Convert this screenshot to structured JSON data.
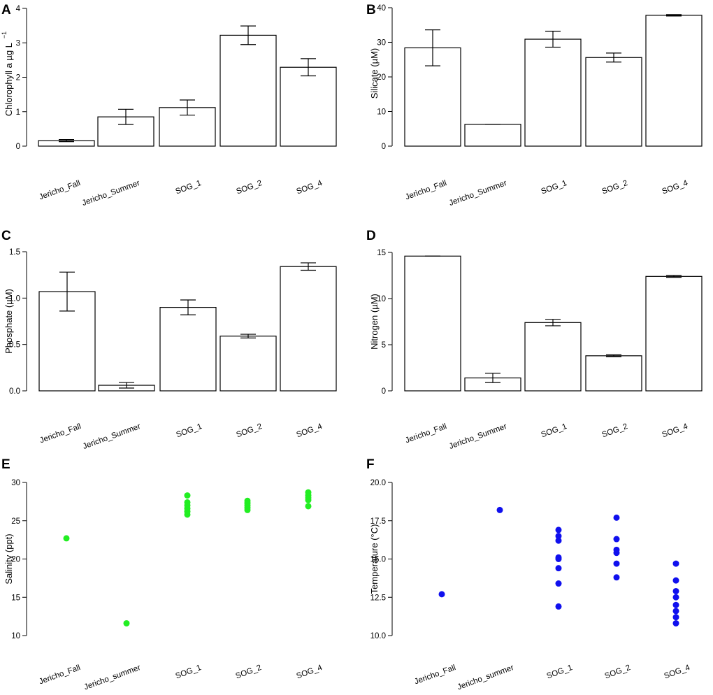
{
  "chart_data": [
    {
      "panel": "A",
      "type": "bar",
      "ylabel": "Chlorophyll a µg L",
      "ylabel_superscript": "−1",
      "categories": [
        "Jericho_Fall",
        "Jericho_Summer",
        "SOG_1",
        "SOG_2",
        "SOG_4"
      ],
      "values": [
        0.16,
        0.85,
        1.12,
        3.22,
        2.29
      ],
      "errors": [
        0.03,
        0.22,
        0.22,
        0.27,
        0.25
      ],
      "ylim": [
        0,
        4
      ],
      "yticks": [
        0,
        1,
        2,
        3,
        4
      ],
      "ytick_labels": [
        "0",
        "1",
        "2",
        "3",
        "4"
      ]
    },
    {
      "panel": "B",
      "type": "bar",
      "ylabel": "Silicate (µM)",
      "categories": [
        "Jericho_Fall",
        "Jericho_Summer",
        "SOG_1",
        "SOG_2",
        "SOG_4"
      ],
      "values": [
        28.4,
        6.3,
        30.9,
        25.6,
        37.8
      ],
      "errors": [
        5.2,
        0,
        2.3,
        1.3,
        0.2
      ],
      "ylim": [
        0,
        40
      ],
      "yticks": [
        0,
        10,
        20,
        30,
        40
      ],
      "ytick_labels": [
        "0",
        "10",
        "20",
        "30",
        "40"
      ]
    },
    {
      "panel": "C",
      "type": "bar",
      "ylabel": "Phosphate (µM)",
      "categories": [
        "Jericho_Fall",
        "Jericho_Summer",
        "SOG_1",
        "SOG_2",
        "SOG_4"
      ],
      "values": [
        1.07,
        0.06,
        0.9,
        0.59,
        1.34
      ],
      "errors": [
        0.21,
        0.03,
        0.08,
        0.02,
        0.04
      ],
      "ylim": [
        0,
        1.5
      ],
      "yticks": [
        0,
        0.5,
        1.0,
        1.5
      ],
      "ytick_labels": [
        "0.0",
        "0.5",
        "1.0",
        "1.5"
      ]
    },
    {
      "panel": "D",
      "type": "bar",
      "ylabel": "Nitrogen (µM)",
      "categories": [
        "Jericho_Fall",
        "Jericho_Summer",
        "SOG_1",
        "SOG_2",
        "SOG_4"
      ],
      "values": [
        14.6,
        1.4,
        7.4,
        3.8,
        12.4
      ],
      "errors": [
        0,
        0.5,
        0.35,
        0.1,
        0.1
      ],
      "ylim": [
        0,
        15
      ],
      "yticks": [
        0,
        5,
        10,
        15
      ],
      "ytick_labels": [
        "0",
        "5",
        "10",
        "15"
      ]
    },
    {
      "panel": "E",
      "type": "scatter",
      "color": "#22ee22",
      "ylabel": "Salinity (ppt)",
      "categories": [
        "Jericho_Fall",
        "Jericho_summer",
        "SOG_1",
        "SOG_2",
        "SOG_4"
      ],
      "points": [
        [
          22.7
        ],
        [
          11.6
        ],
        [
          25.8,
          26.2,
          26.6,
          27.0,
          27.4,
          28.3
        ],
        [
          26.4,
          26.7,
          27.0,
          27.3,
          27.6
        ],
        [
          26.9,
          27.7,
          28.0,
          28.3,
          28.7
        ]
      ],
      "ylim": [
        10,
        30
      ],
      "yticks": [
        10,
        15,
        20,
        25,
        30
      ],
      "ytick_labels": [
        "10",
        "15",
        "20",
        "25",
        "30"
      ]
    },
    {
      "panel": "F",
      "type": "scatter",
      "color": "#1010ee",
      "ylabel": "Temperature (°C)",
      "categories": [
        "Jericho_Fall",
        "Jericho_summer",
        "SOG_1",
        "SOG_2",
        "SOG_4"
      ],
      "points": [
        [
          12.7
        ],
        [
          18.2
        ],
        [
          11.9,
          13.4,
          14.4,
          15.0,
          15.1,
          16.2,
          16.5,
          16.9
        ],
        [
          13.8,
          14.7,
          15.4,
          15.6,
          16.3,
          17.7
        ],
        [
          10.8,
          11.2,
          11.6,
          12.0,
          12.5,
          12.9,
          13.6,
          14.7
        ]
      ],
      "ylim": [
        10,
        20
      ],
      "yticks": [
        10,
        12.5,
        15,
        17.5,
        20
      ],
      "ytick_labels": [
        "10.0",
        "12.5",
        "15.0",
        "17.5",
        "20.0"
      ]
    }
  ]
}
